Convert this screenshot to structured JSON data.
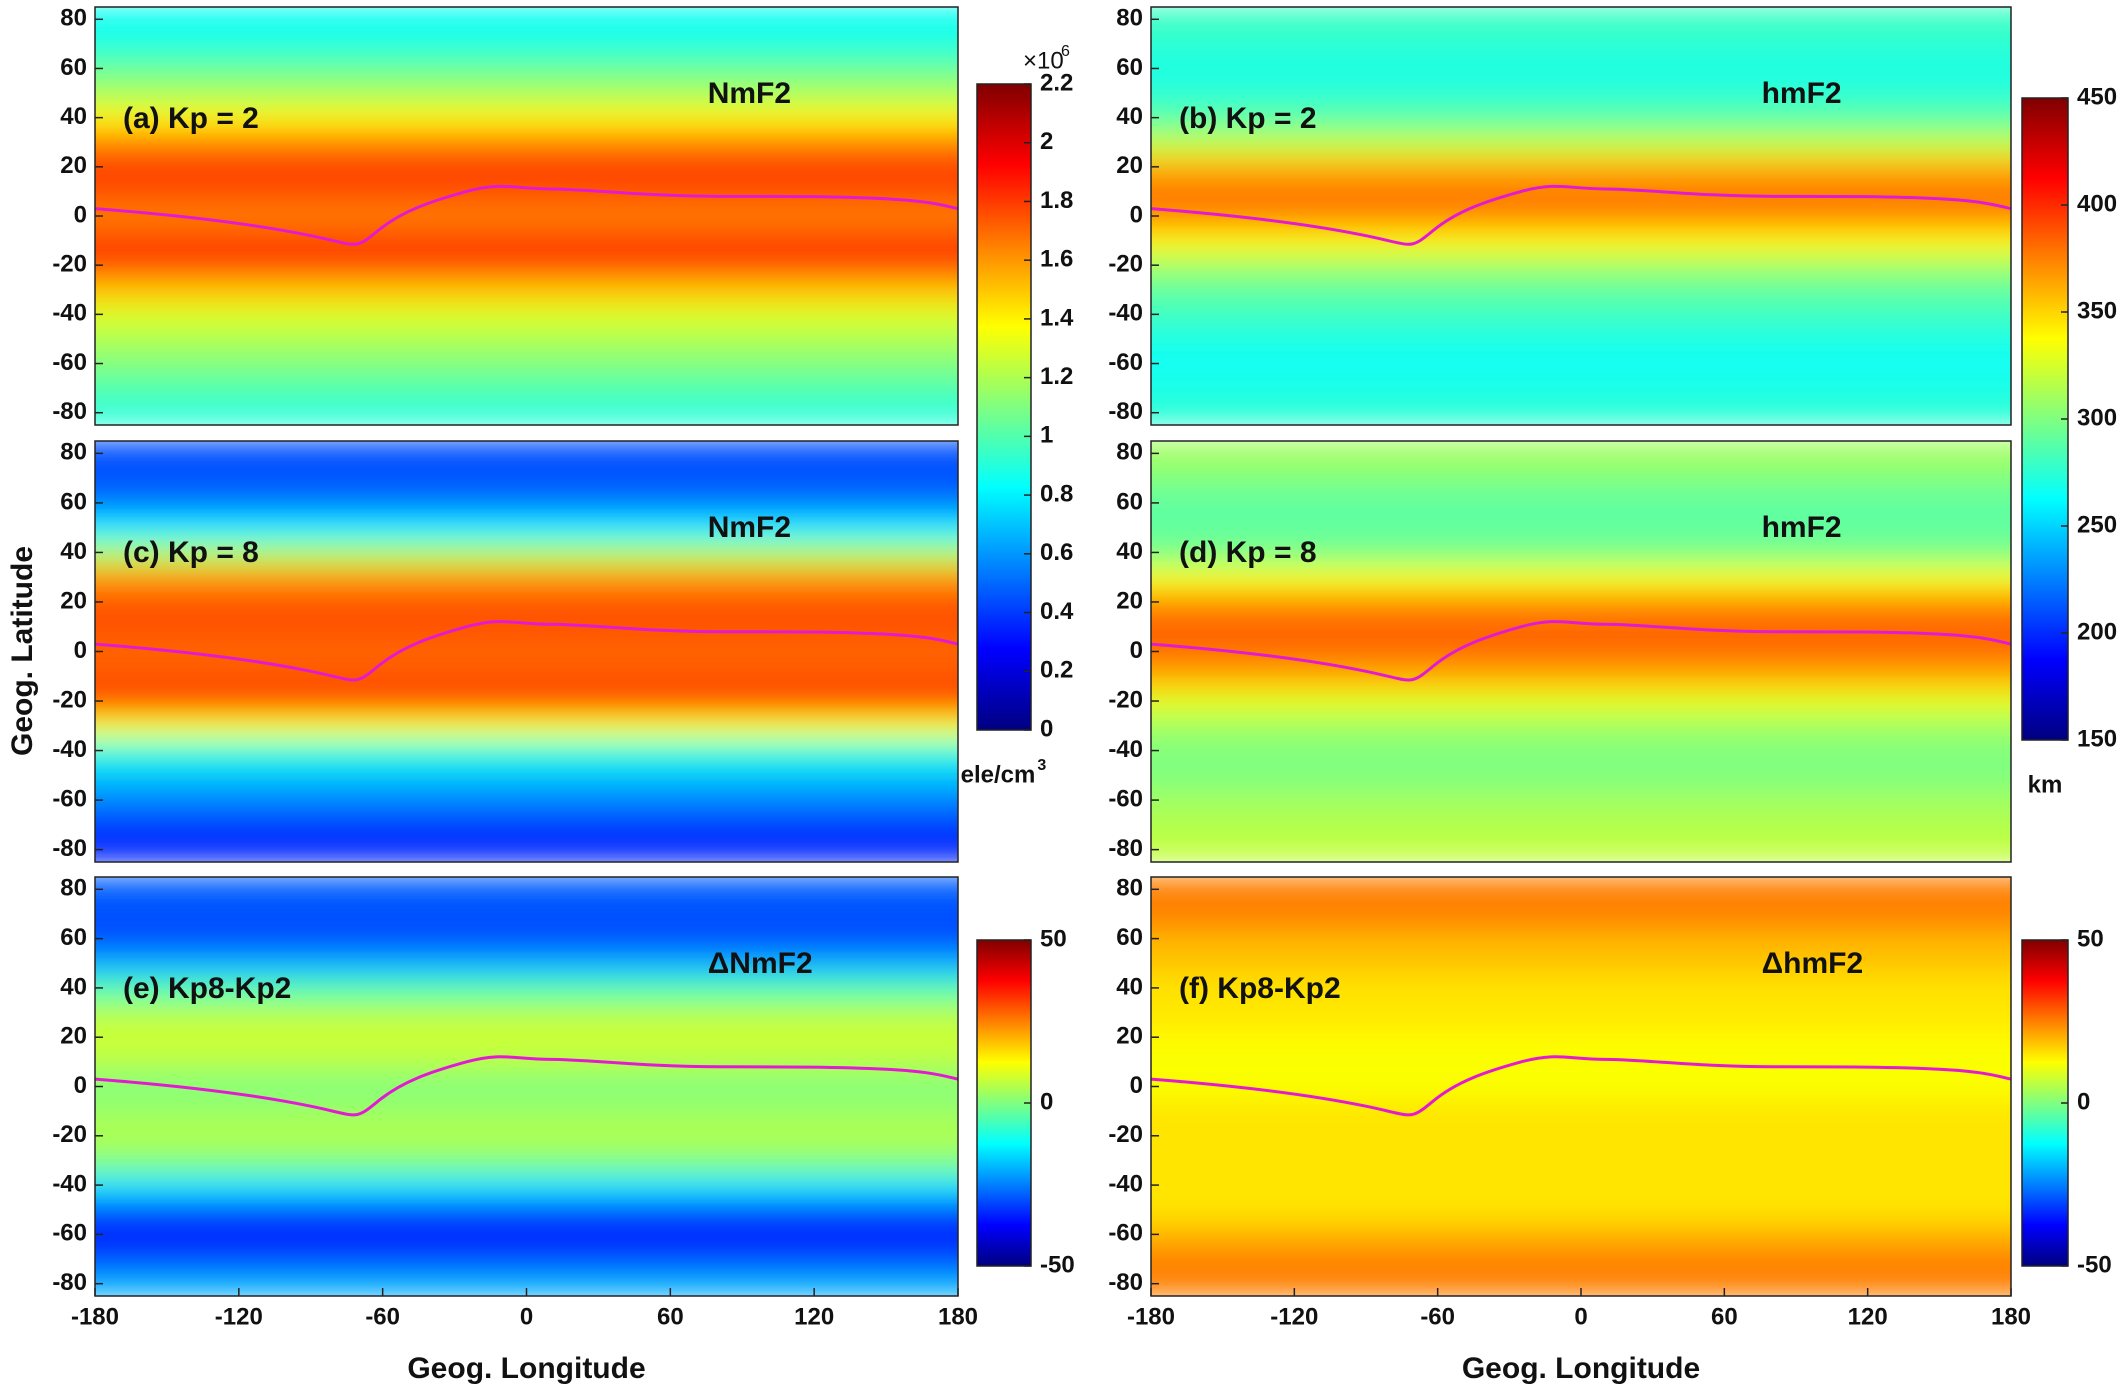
{
  "ylabel": "Geog. Latitude",
  "chart_data": [
    {
      "type": "heatmap",
      "label": "(a) Kp = 2",
      "annotation": "NmF2",
      "colormap": "jet",
      "xlim": [
        -180,
        180
      ],
      "ylim": [
        -85,
        85
      ],
      "yticks": [
        -80,
        -60,
        -40,
        -20,
        0,
        20,
        40,
        60,
        80
      ],
      "lat": [
        -80,
        -70,
        -60,
        -50,
        -40,
        -30,
        -20,
        -10,
        0,
        10,
        20,
        30,
        40,
        50,
        60,
        70,
        80
      ],
      "values": [
        0.9,
        1.0,
        1.1,
        1.2,
        1.3,
        1.5,
        1.75,
        1.8,
        1.65,
        1.75,
        1.8,
        1.65,
        1.4,
        1.2,
        1.05,
        0.9,
        0.85
      ]
    },
    {
      "type": "heatmap",
      "label": "(b) Kp = 2",
      "annotation": "hmF2",
      "colormap": "jet",
      "xlim": [
        -180,
        180
      ],
      "ylim": [
        -85,
        85
      ],
      "yticks": [
        -80,
        -60,
        -40,
        -20,
        0,
        20,
        40,
        60,
        80
      ],
      "lat": [
        -80,
        -70,
        -60,
        -50,
        -40,
        -30,
        -20,
        -10,
        0,
        10,
        20,
        30,
        40,
        50,
        60,
        70,
        80
      ],
      "values": [
        275,
        270,
        265,
        270,
        280,
        290,
        310,
        340,
        370,
        380,
        360,
        320,
        290,
        275,
        270,
        275,
        280
      ]
    },
    {
      "type": "heatmap",
      "label": "(c) Kp = 8",
      "annotation": "NmF2",
      "colormap": "jet",
      "xlim": [
        -180,
        180
      ],
      "ylim": [
        -85,
        85
      ],
      "yticks": [
        -80,
        -60,
        -40,
        -20,
        0,
        20,
        40,
        60,
        80
      ],
      "lat": [
        -80,
        -70,
        -60,
        -50,
        -40,
        -30,
        -20,
        -10,
        0,
        10,
        20,
        30,
        40,
        50,
        60,
        70,
        80
      ],
      "values": [
        0.35,
        0.4,
        0.55,
        0.7,
        0.9,
        1.35,
        1.75,
        1.75,
        1.7,
        1.75,
        1.75,
        1.6,
        1.2,
        0.8,
        0.55,
        0.45,
        0.45
      ]
    },
    {
      "type": "heatmap",
      "label": "(d) Kp = 8",
      "annotation": "hmF2",
      "colormap": "jet",
      "xlim": [
        -180,
        180
      ],
      "ylim": [
        -85,
        85
      ],
      "yticks": [
        -80,
        -60,
        -40,
        -20,
        0,
        20,
        40,
        60,
        80
      ],
      "lat": [
        -80,
        -70,
        -60,
        -50,
        -40,
        -30,
        -20,
        -10,
        0,
        10,
        20,
        30,
        40,
        50,
        60,
        70,
        80
      ],
      "values": [
        320,
        315,
        310,
        300,
        300,
        310,
        330,
        360,
        380,
        385,
        370,
        335,
        300,
        290,
        290,
        300,
        310
      ]
    },
    {
      "type": "heatmap",
      "label": "(e) Kp8-Kp2",
      "annotation": "ΔNmF2",
      "colormap": "jet",
      "xlim": [
        -180,
        180
      ],
      "ylim": [
        -85,
        85
      ],
      "yticks": [
        -80,
        -60,
        -40,
        -20,
        0,
        20,
        40,
        60,
        80
      ],
      "xticks": [
        -180,
        -120,
        -60,
        0,
        60,
        120,
        180
      ],
      "xlabel": "Geog. Longitude",
      "lat": [
        -80,
        -70,
        -60,
        -50,
        -40,
        -30,
        -20,
        -10,
        0,
        10,
        20,
        30,
        40,
        50,
        60,
        70,
        80
      ],
      "values": [
        -20,
        -30,
        -35,
        -30,
        -15,
        0,
        5,
        3,
        0,
        5,
        8,
        5,
        -5,
        -20,
        -30,
        -30,
        -28
      ]
    },
    {
      "type": "heatmap",
      "label": "(f) Kp8-Kp2",
      "annotation": "ΔhmF2",
      "colormap": "jet",
      "xlim": [
        -180,
        180
      ],
      "ylim": [
        -85,
        85
      ],
      "yticks": [
        -80,
        -60,
        -40,
        -20,
        0,
        20,
        40,
        60,
        80
      ],
      "xticks": [
        -180,
        -120,
        -60,
        0,
        60,
        120,
        180
      ],
      "xlabel": "Geog. Longitude",
      "lat": [
        -80,
        -70,
        -60,
        -50,
        -40,
        -30,
        -20,
        -10,
        0,
        10,
        20,
        30,
        40,
        50,
        60,
        70,
        80
      ],
      "values": [
        25,
        25,
        20,
        15,
        15,
        15,
        15,
        15,
        12,
        12,
        13,
        15,
        15,
        18,
        20,
        25,
        25
      ]
    }
  ],
  "colorbars": [
    {
      "clim": [
        0,
        2.2
      ],
      "ticks": [
        0,
        0.2,
        0.4,
        0.6,
        0.8,
        1,
        1.2,
        1.4,
        1.6,
        1.8,
        2,
        2.2
      ],
      "multiplier_base": "×10",
      "multiplier_exponent": "6",
      "unit": "ele/cm",
      "unit_exponent": "3"
    },
    {
      "clim": [
        150,
        450
      ],
      "ticks": [
        150,
        200,
        250,
        300,
        350,
        400,
        450
      ],
      "unit": "km"
    },
    {
      "clim": [
        -50,
        50
      ],
      "ticks": [
        -50,
        0,
        50
      ]
    },
    {
      "clim": [
        -50,
        50
      ],
      "ticks": [
        -50,
        0,
        50
      ]
    }
  ]
}
